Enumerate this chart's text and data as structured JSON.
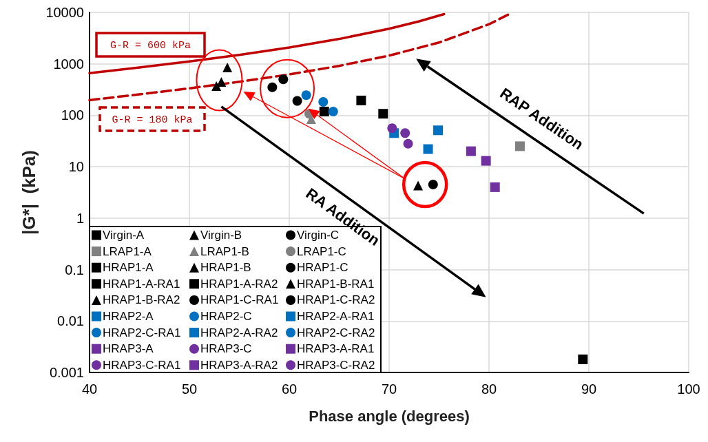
{
  "chart_data": {
    "type": "scatter",
    "xlabel": "Phase angle (degrees)",
    "ylabel": "|G*|  (kPa)",
    "xlim": [
      40,
      100
    ],
    "xticks": [
      40,
      50,
      60,
      70,
      80,
      90,
      100
    ],
    "ylim": [
      0.001,
      10000
    ],
    "yticks": [
      0.001,
      0.01,
      0.1,
      1,
      10,
      100,
      1000,
      10000
    ],
    "log": "y",
    "grid": true,
    "legend": "bottom left",
    "annotations": [
      "RA Addition",
      "RAP Addition"
    ],
    "series": [
      {
        "name": "Virgin-A",
        "color": "#000000",
        "marker": "square",
        "x": [
          89.4
        ],
        "values": [
          0.0018
        ]
      },
      {
        "name": "Virgin-B",
        "color": "#000000",
        "marker": "triangle",
        "x": [
          72.9
        ],
        "values": [
          4.3
        ]
      },
      {
        "name": "Virgin-C",
        "color": "#000000",
        "marker": "circle",
        "x": [
          74.4
        ],
        "values": [
          4.5
        ]
      },
      {
        "name": "LRAP1-A",
        "color": "#808080",
        "marker": "square",
        "x": [
          83.1
        ],
        "values": [
          25
        ]
      },
      {
        "name": "LRAP1-B",
        "color": "#808080",
        "marker": "triangle",
        "x": [
          62.2
        ],
        "values": [
          84
        ]
      },
      {
        "name": "LRAP1-C",
        "color": "#808080",
        "marker": "circle",
        "x": [
          62.0
        ],
        "values": [
          107
        ]
      },
      {
        "name": "HRAP1-A",
        "color": "#000000",
        "marker": "square",
        "x": [
          67.2
        ],
        "values": [
          194
        ]
      },
      {
        "name": "HRAP1-B",
        "color": "#000000",
        "marker": "triangle",
        "x": [
          53.8
        ],
        "values": [
          850
        ]
      },
      {
        "name": "HRAP1-C",
        "color": "#000000",
        "marker": "circle",
        "x": [
          59.4
        ],
        "values": [
          500
        ]
      },
      {
        "name": "HRAP1-A-RA1",
        "color": "#000000",
        "marker": "square",
        "x": [
          63.5
        ],
        "values": [
          118
        ]
      },
      {
        "name": "HRAP1-A-RA2",
        "color": "#000000",
        "marker": "square",
        "x": [
          69.4
        ],
        "values": [
          107
        ]
      },
      {
        "name": "HRAP1-B-RA1",
        "color": "#000000",
        "marker": "triangle",
        "x": [
          53.2
        ],
        "values": [
          445
        ]
      },
      {
        "name": "HRAP1-B-RA2",
        "color": "#000000",
        "marker": "triangle",
        "x": [
          52.7
        ],
        "values": [
          370
        ]
      },
      {
        "name": "HRAP1-C-RA1",
        "color": "#000000",
        "marker": "circle",
        "x": [
          58.3
        ],
        "values": [
          350
        ]
      },
      {
        "name": "HRAP1-C-RA2",
        "color": "#000000",
        "marker": "circle",
        "x": [
          60.8
        ],
        "values": [
          190
        ]
      },
      {
        "name": "HRAP2-A",
        "color": "#0070c0",
        "marker": "square",
        "x": [
          74.9
        ],
        "values": [
          51
        ]
      },
      {
        "name": "HRAP2-C",
        "color": "#0070c0",
        "marker": "circle",
        "x": [
          61.7
        ],
        "values": [
          246
        ]
      },
      {
        "name": "HRAP2-A-RA1",
        "color": "#0070c0",
        "marker": "square",
        "x": [
          70.5
        ],
        "values": [
          45
        ]
      },
      {
        "name": "HRAP2-C-RA1",
        "color": "#0070c0",
        "marker": "circle",
        "x": [
          63.4
        ],
        "values": [
          182
        ]
      },
      {
        "name": "HRAP2-A-RA2",
        "color": "#0070c0",
        "marker": "square",
        "x": [
          73.9
        ],
        "values": [
          22
        ]
      },
      {
        "name": "HRAP2-C-RA2",
        "color": "#0070c0",
        "marker": "circle",
        "x": [
          64.4
        ],
        "values": [
          118
        ]
      },
      {
        "name": "HRAP3-A",
        "color": "#7030a0",
        "marker": "square",
        "x": [
          79.7
        ],
        "values": [
          13
        ]
      },
      {
        "name": "HRAP3-C",
        "color": "#7030a0",
        "marker": "circle",
        "x": [
          70.3
        ],
        "values": [
          56
        ]
      },
      {
        "name": "HRAP3-A-RA1",
        "color": "#7030a0",
        "marker": "square",
        "x": [
          80.6
        ],
        "values": [
          4
        ]
      },
      {
        "name": "HRAP3-C-RA1",
        "color": "#7030a0",
        "marker": "circle",
        "x": [
          71.9
        ],
        "values": [
          28
        ]
      },
      {
        "name": "HRAP3-A-RA2",
        "color": "#7030a0",
        "marker": "square",
        "x": [
          78.2
        ],
        "values": [
          20
        ]
      },
      {
        "name": "HRAP3-C-RA2",
        "color": "#7030a0",
        "marker": "circle",
        "x": [
          71.6
        ],
        "values": [
          45
        ]
      },
      {
        "name": "G-R = 600 kPa",
        "type": "line",
        "line_style": "solid",
        "color": "#c00000",
        "x": [
          40,
          45,
          50,
          55,
          60,
          65,
          70,
          73,
          75.5
        ],
        "values": [
          657,
          849,
          1112,
          1494,
          2078,
          3044,
          4820,
          6710,
          9264
        ]
      },
      {
        "name": "G-R = 180 kPa",
        "type": "line",
        "line_style": "dashed",
        "color": "#c00000",
        "x": [
          40,
          45,
          50,
          55,
          60,
          65,
          70,
          75,
          80,
          82
        ],
        "values": [
          197,
          255,
          334,
          448,
          623,
          913,
          1446,
          2595,
          5880,
          9200
        ]
      }
    ]
  }
}
